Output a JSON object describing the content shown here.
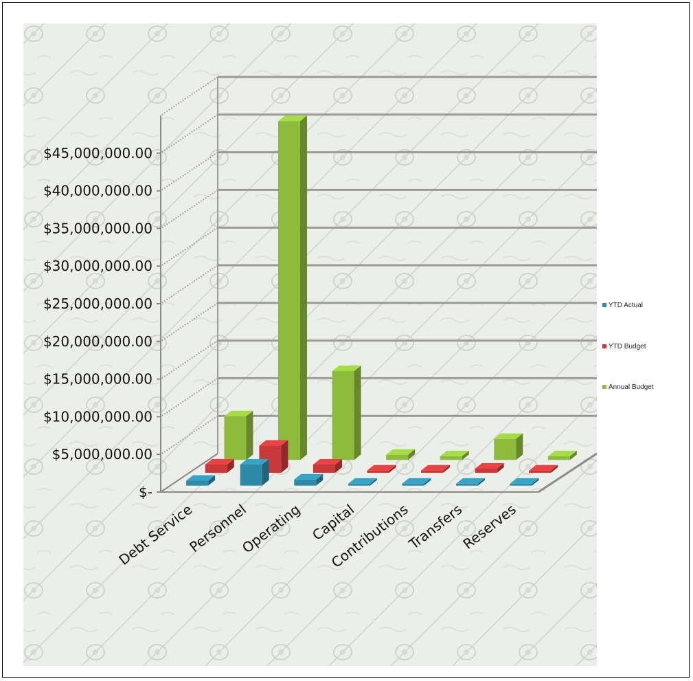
{
  "chart_data": {
    "type": "bar",
    "categories": [
      "Debt Service",
      "Personnel",
      "Operating",
      "Capital",
      "Contributions",
      "Transfers",
      "Reserves"
    ],
    "series": [
      {
        "name": "YTD Actual",
        "color": "#2e8ba8",
        "values": [
          650000,
          2800000,
          800000,
          250000,
          250000,
          250000,
          250000
        ]
      },
      {
        "name": "YTD Budget",
        "color": "#c9383a",
        "values": [
          1100000,
          3600000,
          1100000,
          300000,
          300000,
          550000,
          300000
        ]
      },
      {
        "name": "Annual Budget",
        "color": "#8dbb3c",
        "values": [
          5800000,
          45000000,
          11800000,
          700000,
          500000,
          2800000,
          500000
        ]
      }
    ],
    "y_ticks": [
      "$-",
      "$5,000,000.00",
      "$10,000,000.00",
      "$15,000,000.00",
      "$20,000,000.00",
      "$25,000,000.00",
      "$30,000,000.00",
      "$35,000,000.00",
      "$40,000,000.00",
      "$45,000,000.00"
    ],
    "ylim": [
      0,
      50000000
    ],
    "grid": true,
    "legend_position": "right",
    "style": "3d-clustered-column"
  }
}
